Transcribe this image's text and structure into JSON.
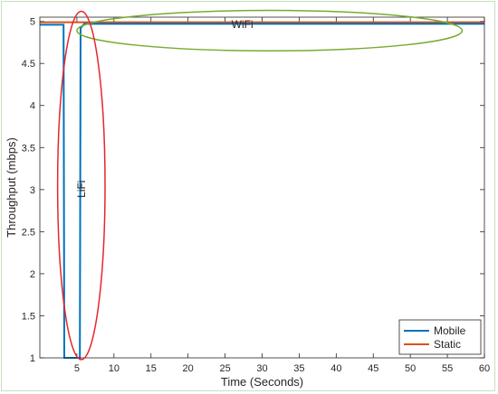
{
  "chart_data": {
    "type": "line",
    "xlabel": "Time (Seconds)",
    "ylabel": "Throughput (mbps)",
    "xlim": [
      0,
      60
    ],
    "ylim": [
      1,
      5.05
    ],
    "xticks": [
      5,
      10,
      15,
      20,
      25,
      30,
      35,
      40,
      45,
      50,
      55,
      60
    ],
    "yticks": [
      1,
      1.5,
      2,
      2.5,
      3,
      3.5,
      4,
      4.5,
      5
    ],
    "grid": false,
    "legend_position": "bottom-right",
    "series": [
      {
        "name": "Mobile",
        "color": "#0072BD",
        "points": [
          [
            0,
            4.96
          ],
          [
            3.2,
            4.96
          ],
          [
            3.3,
            1
          ],
          [
            5.4,
            1
          ],
          [
            5.5,
            4.92
          ],
          [
            6.0,
            4.97
          ],
          [
            60,
            4.97
          ]
        ]
      },
      {
        "name": "Static",
        "color": "#D95319",
        "points": [
          [
            0,
            4.99
          ],
          [
            60,
            4.99
          ]
        ]
      }
    ],
    "annotations": [
      {
        "label": "WiFi",
        "color": "#77AC30",
        "shape": "ellipse",
        "cx": 31,
        "cy": 4.89,
        "rx": 26,
        "ry": 0.24
      },
      {
        "label": "LiFi",
        "color": "#E8262A",
        "shape": "ellipse",
        "cx": 5.6,
        "cy": 3.05,
        "rx": 3.2,
        "ry": 2.07
      }
    ]
  }
}
